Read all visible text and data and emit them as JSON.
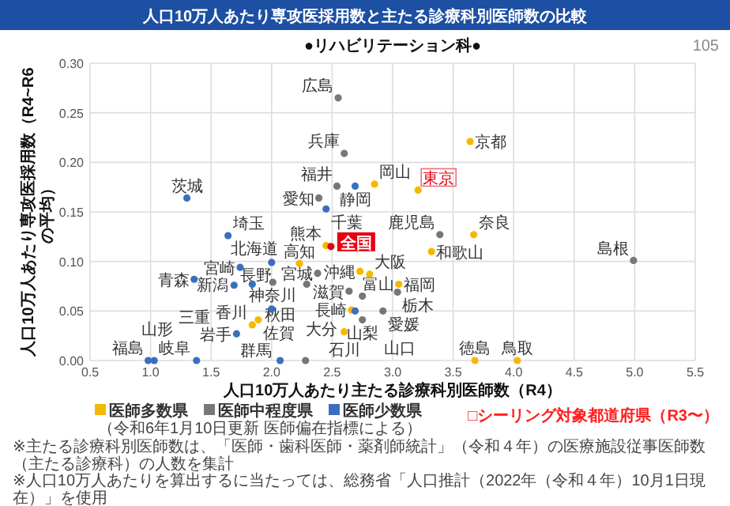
{
  "chart_data": {
    "type": "scatter",
    "title": "人口10万人あたり専攻医採用数と主たる診療科別医師数の比較",
    "subtitle": "●リハビリテーション科●",
    "xlabel": "人口10万人あたり主たる診療科別医師数（R4）",
    "ylabel": "人口10万人あたり専攻医採用数（R4~R6の平均）",
    "xlim": [
      0.5,
      5.5
    ],
    "xticks": [
      0.5,
      {
        "value": 1,
        "label": "1.0"
      },
      1.5,
      {
        "value": 2,
        "label": "2.0"
      },
      2.5,
      {
        "value": 3,
        "label": "3.0"
      },
      3.5,
      {
        "value": 4,
        "label": "4.0"
      },
      4.5,
      {
        "value": 5,
        "label": "5.0"
      },
      5.5
    ],
    "ylim": [
      0,
      0.3
    ],
    "yticks": [
      {
        "value": 0,
        "label": "0.00"
      },
      {
        "value": 0.05,
        "label": "0.05"
      },
      {
        "value": 0.1,
        "label": "0.10"
      },
      {
        "value": 0.15,
        "label": "0.15"
      },
      {
        "value": 0.2,
        "label": "0.20"
      },
      {
        "value": 0.25,
        "label": "0.25"
      },
      {
        "value": 0.3,
        "label": "0.30"
      }
    ],
    "grid": true,
    "legend": "bottom",
    "marker": "circle",
    "series": [
      {
        "name": "医師多数県",
        "color": "#f5b800",
        "x": [
          2.45,
          3.64,
          2.85,
          3.67,
          2.23,
          1.89,
          1.84,
          3.32,
          2.73,
          2.81,
          3.05,
          2.66,
          2.6,
          3.68,
          4.03
        ],
        "values": [
          0.116,
          0.221,
          0.178,
          0.127,
          0.098,
          0.041,
          0.036,
          0.11,
          0.09,
          0.087,
          0.077,
          0.051,
          0.029,
          0,
          0
        ]
      },
      {
        "color": "#f5b800",
        "x": [
          3.21
        ],
        "values": [
          0.172
        ]
      },
      {
        "name": "医師中程度県",
        "color": "#777777",
        "x": [
          2.55,
          2.6,
          2.54,
          2.39,
          3.39,
          2.38,
          2.01,
          2.29,
          2.28,
          4.99,
          2.64,
          3.04,
          2.75,
          2.92,
          2.75
        ],
        "values": [
          0.265,
          0.209,
          0.176,
          0.164,
          0.127,
          0.088,
          0.079,
          0.077,
          0,
          0.101,
          0.07,
          0.069,
          0.065,
          0.05,
          0.041
        ]
      },
      {
        "name": "医師少数県",
        "color": "#3a6fbf",
        "x": [
          2.69,
          2.45,
          1.3,
          1.64,
          2.0,
          1.74,
          1.36,
          1.84,
          1.69,
          2.0,
          1.71,
          0.98,
          1.03,
          1.38,
          2.07,
          2.69
        ],
        "values": [
          0.176,
          0.153,
          0.164,
          0.126,
          0.099,
          0.094,
          0.082,
          0.077,
          0.076,
          0.052,
          0.027,
          0,
          0,
          0,
          0,
          0.05
        ]
      },
      {
        "name": "全国",
        "color": "#e60012",
        "x": [
          2.49
        ],
        "values": [
          0.115
        ]
      }
    ],
    "annotations": [
      {
        "text": "熊本",
        "x": 2.45,
        "y": 0.116
      },
      {
        "text": "京都",
        "x": 3.64,
        "y": 0.221
      },
      {
        "text": "岡山",
        "x": 2.85,
        "y": 0.178
      },
      {
        "text": "奈良",
        "x": 3.67,
        "y": 0.127
      },
      {
        "text": "高知",
        "x": 2.23,
        "y": 0.098
      },
      {
        "text": "佐賀",
        "x": 1.89,
        "y": 0.041
      },
      {
        "text": "香川",
        "x": 1.84,
        "y": 0.036
      },
      {
        "text": "和歌山",
        "x": 3.32,
        "y": 0.11
      },
      {
        "text": "沖縄",
        "x": 2.73,
        "y": 0.09
      },
      {
        "text": "大阪",
        "x": 2.81,
        "y": 0.087
      },
      {
        "text": "福岡",
        "x": 3.05,
        "y": 0.077
      },
      {
        "text": "長崎",
        "x": 2.66,
        "y": 0.051
      },
      {
        "text": "石川",
        "x": 2.6,
        "y": 0.029
      },
      {
        "text": "徳島",
        "x": 3.68,
        "y": 0
      },
      {
        "text": "鳥取",
        "x": 4.03,
        "y": 0
      },
      {
        "text": "東京",
        "x": 3.21,
        "y": 0.172
      },
      {
        "text": "広島",
        "x": 2.55,
        "y": 0.265
      },
      {
        "text": "兵庫",
        "x": 2.6,
        "y": 0.209
      },
      {
        "text": "福井",
        "x": 2.54,
        "y": 0.176
      },
      {
        "text": "愛知",
        "x": 2.39,
        "y": 0.164
      },
      {
        "text": "鹿児島",
        "x": 3.39,
        "y": 0.127
      },
      {
        "text": "宮城",
        "x": 2.38,
        "y": 0.088
      },
      {
        "text": "神奈川",
        "x": 2.01,
        "y": 0.079
      },
      {
        "text": "北海道",
        "x": 2.29,
        "y": 0.077
      },
      {
        "text": "大分",
        "x": 2.28,
        "y": 0
      },
      {
        "text": "島根",
        "x": 4.99,
        "y": 0.101
      },
      {
        "text": "滋賀",
        "x": 2.64,
        "y": 0.07
      },
      {
        "text": "栃木",
        "x": 3.04,
        "y": 0.069
      },
      {
        "text": "富山",
        "x": 2.75,
        "y": 0.065
      },
      {
        "text": "愛媛",
        "x": 2.92,
        "y": 0.05
      },
      {
        "text": "山梨",
        "x": 2.75,
        "y": 0.041
      },
      {
        "text": "静岡",
        "x": 2.69,
        "y": 0.176
      },
      {
        "text": "千葉",
        "x": 2.45,
        "y": 0.153
      },
      {
        "text": "茨城",
        "x": 1.3,
        "y": 0.164
      },
      {
        "text": "埼玉",
        "x": 1.64,
        "y": 0.126
      },
      {
        "text": "長野",
        "x": 2.0,
        "y": 0.099
      },
      {
        "text": "宮崎",
        "x": 1.74,
        "y": 0.094
      },
      {
        "text": "青森",
        "x": 1.36,
        "y": 0.082
      },
      {
        "text": "新潟",
        "x": 1.84,
        "y": 0.077
      },
      {
        "text": "三重",
        "x": 1.69,
        "y": 0.076
      },
      {
        "text": "群馬",
        "x": 2.0,
        "y": 0.052
      },
      {
        "text": "岩手",
        "x": 1.71,
        "y": 0.027
      },
      {
        "text": "福島",
        "x": 0.98,
        "y": 0
      },
      {
        "text": "岐阜",
        "x": 1.03,
        "y": 0
      },
      {
        "text": "山形",
        "x": 1.38,
        "y": 0
      },
      {
        "text": "秋田",
        "x": 2.07,
        "y": 0
      },
      {
        "text": "山口",
        "x": 2.69,
        "y": 0.05
      },
      "（令和6年1月10日更新 医師偏在指標による）",
      "□シーリング対象都道府県（R3〜）",
      "※主たる診療科別医師数は、「医師・歯科医師・薬剤師統計」（令和４年）の医療施設従事医師数（主たる診療科）の人数を集計",
      "※人口10万人あたりを算出するに当たっては、総務省「人口推計（2022年（令和４年）10月1日現在）」を使用",
      "105"
    ]
  }
}
